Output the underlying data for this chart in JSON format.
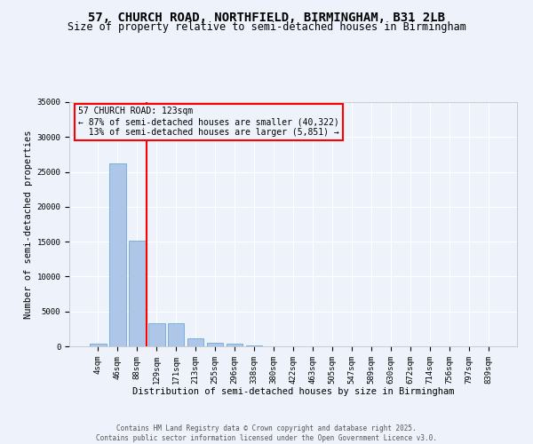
{
  "title": "57, CHURCH ROAD, NORTHFIELD, BIRMINGHAM, B31 2LB",
  "subtitle": "Size of property relative to semi-detached houses in Birmingham",
  "xlabel": "Distribution of semi-detached houses by size in Birmingham",
  "ylabel": "Number of semi-detached properties",
  "footnote": "Contains HM Land Registry data © Crown copyright and database right 2025.\nContains public sector information licensed under the Open Government Licence v3.0.",
  "bar_labels": [
    "4sqm",
    "46sqm",
    "88sqm",
    "129sqm",
    "171sqm",
    "213sqm",
    "255sqm",
    "296sqm",
    "338sqm",
    "380sqm",
    "422sqm",
    "463sqm",
    "505sqm",
    "547sqm",
    "589sqm",
    "630sqm",
    "672sqm",
    "714sqm",
    "756sqm",
    "797sqm",
    "839sqm"
  ],
  "bar_values": [
    400,
    26200,
    15200,
    3300,
    3350,
    1100,
    500,
    350,
    150,
    0,
    0,
    0,
    0,
    0,
    0,
    0,
    0,
    0,
    0,
    0,
    0
  ],
  "bar_color": "#aec6e8",
  "bar_edge_color": "#5a9fd4",
  "property_line_x": 2.5,
  "property_sqm": 123,
  "pct_smaller": 87,
  "pct_larger": 13,
  "count_smaller": 40322,
  "count_larger": 5851,
  "vline_color": "red",
  "annotation_box_color": "red",
  "ylim": [
    0,
    35000
  ],
  "yticks": [
    0,
    5000,
    10000,
    15000,
    20000,
    25000,
    30000,
    35000
  ],
  "background_color": "#eef2fb",
  "grid_color": "white",
  "title_fontsize": 10,
  "subtitle_fontsize": 8.5,
  "axis_label_fontsize": 7.5,
  "tick_fontsize": 6.5,
  "annot_fontsize": 7
}
